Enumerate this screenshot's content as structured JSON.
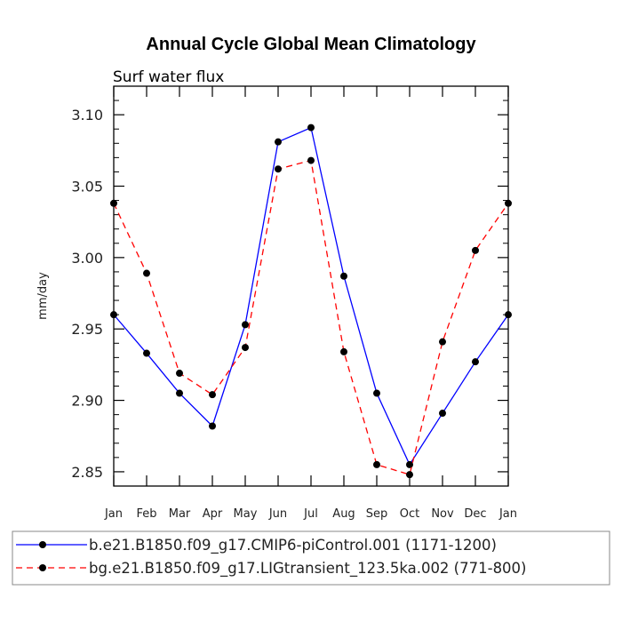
{
  "chart_data": {
    "type": "line",
    "title": "Annual Cycle Global Mean Climatology",
    "subtitle": "Surf water flux",
    "xlabel": "",
    "ylabel": "mm/day",
    "categories": [
      "Jan",
      "Feb",
      "Mar",
      "Apr",
      "May",
      "Jun",
      "Jul",
      "Aug",
      "Sep",
      "Oct",
      "Nov",
      "Dec",
      "Jan"
    ],
    "ylim": [
      2.84,
      3.12
    ],
    "yticks": [
      "2.85",
      "2.90",
      "2.95",
      "3.00",
      "3.05",
      "3.10"
    ],
    "grid": false,
    "legend_position": "bottom",
    "series": [
      {
        "name": "b.e21.B1850.f09_g17.CMIP6-piControl.001 (1171-1200)",
        "color": "#0000ff",
        "line_style": "solid",
        "values": [
          2.96,
          2.933,
          2.905,
          2.882,
          2.953,
          3.081,
          3.091,
          2.987,
          2.905,
          2.855,
          2.891,
          2.927,
          2.96
        ]
      },
      {
        "name": "bg.e21.B1850.f09_g17.LIGtransient_123.5ka.002 (771-800)",
        "color": "#ff0000",
        "line_style": "dashed",
        "values": [
          3.038,
          2.989,
          2.919,
          2.904,
          2.937,
          3.062,
          3.068,
          2.934,
          2.855,
          2.848,
          2.941,
          3.005,
          3.038
        ]
      }
    ]
  }
}
